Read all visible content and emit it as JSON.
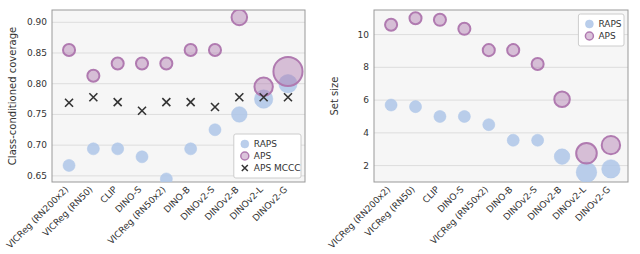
{
  "chart_data": [
    {
      "type": "scatter",
      "categories": [
        "VICReg (RN200x2)",
        "VICReg (RN50)",
        "CLIP",
        "DINO-S",
        "VICReg (RN50x2)",
        "DINO-B",
        "DINOv2-S",
        "DINOv2-B",
        "DINOv2-L",
        "DINOv2-G"
      ],
      "y_label": "Class-conditioned coverage",
      "ylim": [
        0.64,
        0.92
      ],
      "yticks": [
        {
          "value": 0.65,
          "label": "0.65"
        },
        {
          "value": 0.7,
          "label": "0.70"
        },
        {
          "value": 0.75,
          "label": "0.75"
        },
        {
          "value": 0.8,
          "label": "0.80"
        },
        {
          "value": 0.85,
          "label": "0.85"
        },
        {
          "value": 0.9,
          "label": "0.90"
        }
      ],
      "grid": true,
      "legend": "lower right",
      "series": [
        {
          "name": "RAPS",
          "color": "#aec6e8",
          "marker": "circle",
          "values": [
            0.667,
            0.694,
            0.694,
            0.681,
            0.645,
            0.694,
            0.725,
            0.75,
            0.775,
            0.8
          ],
          "sizes": [
            120,
            120,
            120,
            120,
            120,
            120,
            120,
            200,
            280,
            280
          ]
        },
        {
          "name": "APS",
          "color": "#b07ab0",
          "marker": "circle",
          "values": [
            0.855,
            0.813,
            0.833,
            0.833,
            0.833,
            0.855,
            0.855,
            0.908,
            0.795,
            0.82
          ],
          "sizes": [
            120,
            120,
            120,
            120,
            120,
            120,
            120,
            200,
            280,
            700
          ]
        },
        {
          "name": "APS MCCC",
          "color": "#333333",
          "marker": "x",
          "values": [
            0.769,
            0.778,
            0.77,
            0.756,
            0.77,
            0.77,
            0.762,
            0.778,
            0.778,
            0.778
          ]
        }
      ]
    },
    {
      "type": "scatter",
      "categories": [
        "VICReg (RN200x2)",
        "VICReg (RN50)",
        "CLIP",
        "DINO-S",
        "VICReg (RN50x2)",
        "DINO-B",
        "DINOv2-S",
        "DINOv2-B",
        "DINOv2-L",
        "DINOv2-G"
      ],
      "y_label": "Set size",
      "ylim": [
        1.0,
        11.5
      ],
      "yticks": [
        2,
        4,
        6,
        8,
        10
      ],
      "grid": true,
      "legend": "upper right",
      "series": [
        {
          "name": "RAPS",
          "color": "#aec6e8",
          "marker": "circle",
          "values": [
            5.7,
            5.6,
            5.0,
            5.0,
            4.5,
            3.55,
            3.55,
            2.55,
            1.6,
            1.8
          ],
          "sizes": [
            120,
            120,
            120,
            120,
            120,
            120,
            120,
            200,
            350,
            280
          ]
        },
        {
          "name": "APS",
          "color": "#b07ab0",
          "marker": "circle",
          "values": [
            10.6,
            11.0,
            10.9,
            10.35,
            9.05,
            9.05,
            8.2,
            6.05,
            2.75,
            3.25
          ],
          "sizes": [
            120,
            120,
            120,
            120,
            120,
            120,
            120,
            200,
            350,
            280
          ]
        }
      ]
    }
  ]
}
